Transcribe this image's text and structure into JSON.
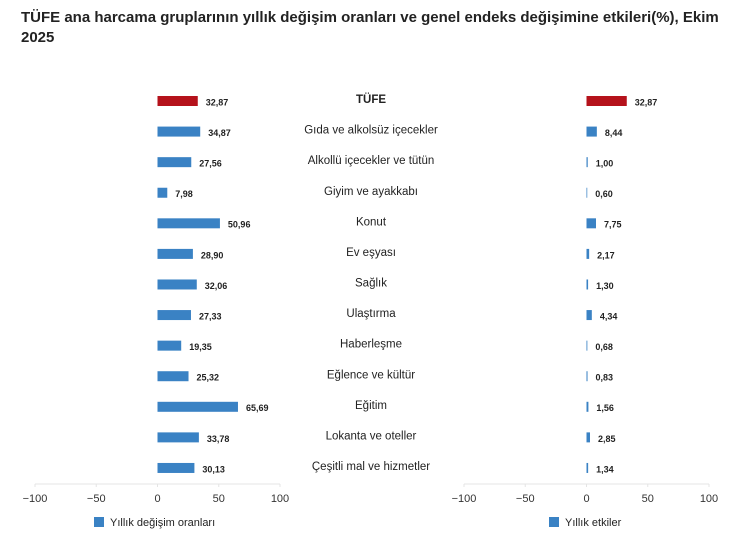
{
  "chart_data": [
    {
      "type": "bar",
      "orientation": "horizontal",
      "title": "TÜFE ana harcama gruplarının yıllık değişim oranları ve genel endeks değişimine etkileri(%), Ekim 2025",
      "categories": [
        "TÜFE",
        "Gıda ve alkolsüz içecekler",
        "Alkollü içecekler ve tütün",
        "Giyim ve ayakkabı",
        "Konut",
        "Ev eşyası",
        "Sağlık",
        "Ulaştırma",
        "Haberleşme",
        "Eğlence ve kültür",
        "Eğitim",
        "Lokanta ve oteller",
        "Çeşitli mal ve hizmetler"
      ],
      "series": [
        {
          "name": "Yıllık değişim oranları",
          "color": "#3a82c4",
          "colors": [
            "#b5121b",
            "#3a82c4",
            "#3a82c4",
            "#3a82c4",
            "#3a82c4",
            "#3a82c4",
            "#3a82c4",
            "#3a82c4",
            "#3a82c4",
            "#3a82c4",
            "#3a82c4",
            "#3a82c4",
            "#3a82c4"
          ],
          "values": [
            32.87,
            34.87,
            27.56,
            7.98,
            50.96,
            28.9,
            32.06,
            27.33,
            19.35,
            25.32,
            65.69,
            33.78,
            30.13
          ],
          "value_labels": [
            "32,87",
            "34,87",
            "27,56",
            "7,98",
            "50,96",
            "28,90",
            "32,06",
            "27,33",
            "19,35",
            "25,32",
            "65,69",
            "33,78",
            "30,13"
          ]
        }
      ],
      "xlim": [
        -100,
        100
      ],
      "xticks": [
        {
          "value": -100,
          "label": "−100"
        },
        {
          "value": -50,
          "label": "−50"
        },
        0,
        50,
        100
      ]
    },
    {
      "type": "bar",
      "orientation": "horizontal",
      "series": [
        {
          "name": "Yıllık etkiler",
          "color": "#3a82c4",
          "colors": [
            "#b5121b",
            "#3a82c4",
            "#3a82c4",
            "#3a82c4",
            "#3a82c4",
            "#3a82c4",
            "#3a82c4",
            "#3a82c4",
            "#3a82c4",
            "#3a82c4",
            "#3a82c4",
            "#3a82c4",
            "#3a82c4"
          ],
          "values": [
            32.87,
            8.44,
            1.0,
            0.6,
            7.75,
            2.17,
            1.3,
            4.34,
            0.68,
            0.83,
            1.56,
            2.85,
            1.34
          ],
          "value_labels": [
            "32,87",
            "8,44",
            "1,00",
            "0,60",
            "7,75",
            "2,17",
            "1,30",
            "4,34",
            "0,68",
            "0,83",
            "1,56",
            "2,85",
            "1,34"
          ]
        }
      ],
      "xlim": [
        -100,
        100
      ],
      "xticks": [
        {
          "value": -100,
          "label": "−100"
        },
        {
          "value": -50,
          "label": "−50"
        },
        0,
        50,
        100
      ]
    }
  ]
}
